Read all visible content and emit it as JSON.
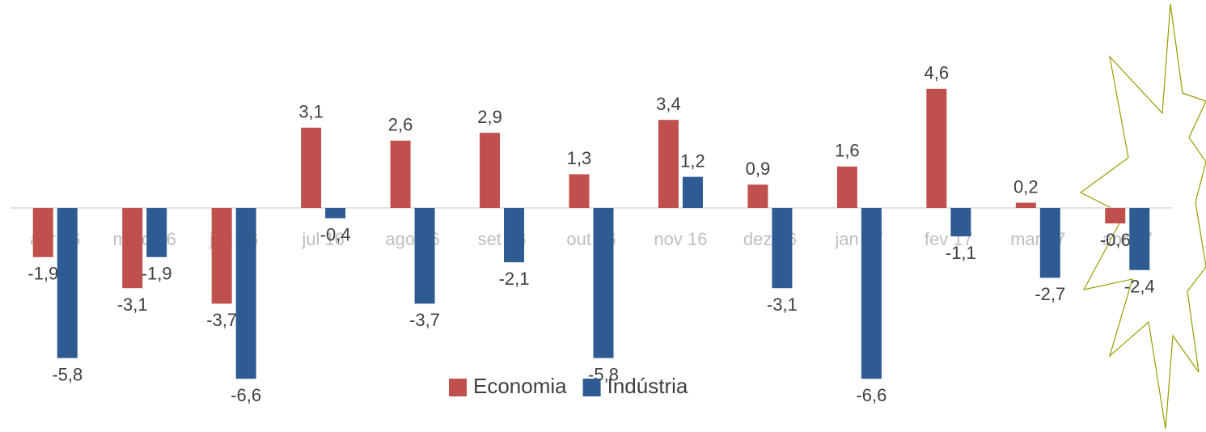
{
  "chart_data": {
    "type": "bar",
    "categories": [
      "abr 16",
      "maio 16",
      "jun 16",
      "jul 16",
      "ago 16",
      "set 16",
      "out 16",
      "nov 16",
      "dez 16",
      "jan 17",
      "fev 17",
      "mar 17",
      "abr 17"
    ],
    "series": [
      {
        "name": "Economia",
        "color": "#c0504d",
        "values": [
          -1.9,
          -3.1,
          -3.7,
          3.1,
          2.6,
          2.9,
          1.3,
          3.4,
          0.9,
          1.6,
          4.6,
          0.2,
          -0.6
        ],
        "value_labels": [
          "-1,9",
          "-3,1",
          "-3,7",
          "3,1",
          "2,6",
          "2,9",
          "1,3",
          "3,4",
          "0,9",
          "1,6",
          "4,6",
          "0,2",
          "-0,6"
        ]
      },
      {
        "name": "Indústria",
        "color": "#2f5b93",
        "values": [
          -5.8,
          -1.9,
          -6.6,
          -0.4,
          -3.7,
          -2.1,
          -5.8,
          1.2,
          -3.1,
          -6.6,
          -1.1,
          -2.7,
          -2.4
        ],
        "value_labels": [
          "-5,8",
          "-1,9",
          "-6,6",
          "-0,4",
          "-3,7",
          "-2,1",
          "-5,8",
          "1,2",
          "-3,1",
          "-6,6",
          "-1,1",
          "-2,7",
          "-2,4"
        ]
      }
    ],
    "ylim": [
      -7,
      6
    ],
    "legend": "bottom"
  }
}
